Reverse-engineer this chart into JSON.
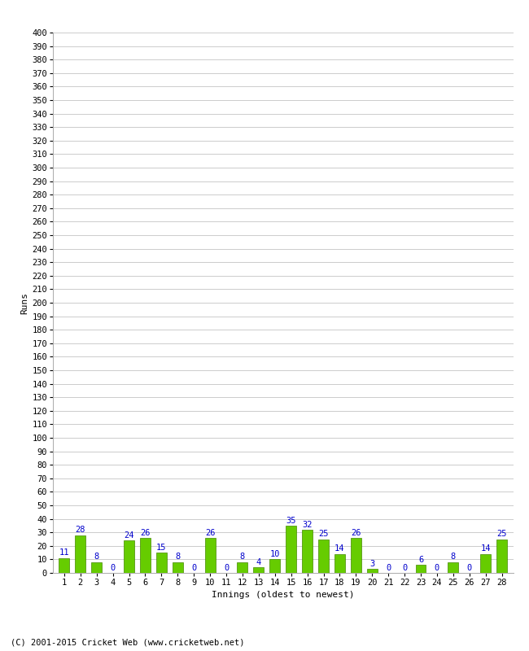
{
  "innings": [
    1,
    2,
    3,
    4,
    5,
    6,
    7,
    8,
    9,
    10,
    11,
    12,
    13,
    14,
    15,
    16,
    17,
    18,
    19,
    20,
    21,
    22,
    23,
    24,
    25,
    26,
    27,
    28
  ],
  "values": [
    11,
    28,
    8,
    0,
    24,
    26,
    15,
    8,
    0,
    26,
    0,
    8,
    4,
    10,
    35,
    32,
    25,
    14,
    26,
    3,
    0,
    0,
    6,
    0,
    8,
    0,
    14,
    25
  ],
  "bar_color": "#66cc00",
  "bar_edge_color": "#448800",
  "label_color": "#0000cc",
  "ylabel": "Runs",
  "xlabel": "Innings (oldest to newest)",
  "ylim": [
    0,
    400
  ],
  "yticks": [
    0,
    10,
    20,
    30,
    40,
    50,
    60,
    70,
    80,
    90,
    100,
    110,
    120,
    130,
    140,
    150,
    160,
    170,
    180,
    190,
    200,
    210,
    220,
    230,
    240,
    250,
    260,
    270,
    280,
    290,
    300,
    310,
    320,
    330,
    340,
    350,
    360,
    370,
    380,
    390,
    400
  ],
  "footer": "(C) 2001-2015 Cricket Web (www.cricketweb.net)",
  "background_color": "#ffffff",
  "grid_color": "#cccccc",
  "label_fontsize": 8,
  "tick_fontsize": 7.5,
  "bar_label_fontsize": 7.5,
  "footer_fontsize": 7.5
}
